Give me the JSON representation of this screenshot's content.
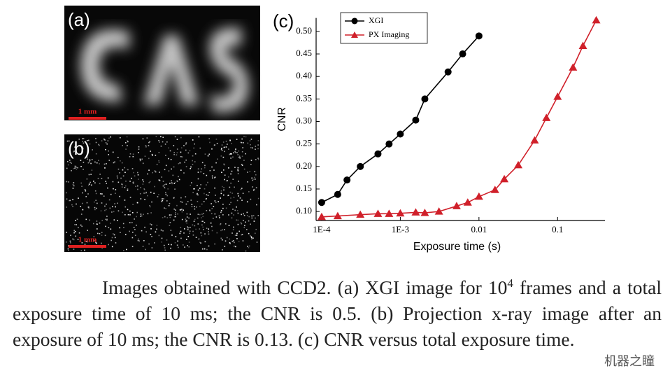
{
  "panels": {
    "a": {
      "label": "(a)",
      "scale": "1 mm"
    },
    "b": {
      "label": "(b)",
      "scale": "1 mm"
    }
  },
  "chart_data": {
    "type": "line",
    "panel_label": "(c)",
    "x_label": "Exposure time (s)",
    "y_label": "CNR",
    "log_x": true,
    "legend": "upper left",
    "xlim": [
      8.5e-05,
      0.4
    ],
    "ylim": [
      0.08,
      0.53
    ],
    "xticks": [
      {
        "value": 0.0001,
        "label": "1E-4"
      },
      {
        "value": 0.001,
        "label": "1E-3"
      },
      0.01,
      0.1
    ],
    "yticks": [
      {
        "value": 0.1,
        "label": "0.10"
      },
      0.15,
      {
        "value": 0.2,
        "label": "0.20"
      },
      0.25,
      {
        "value": 0.3,
        "label": "0.30"
      },
      0.35,
      {
        "value": 0.4,
        "label": "0.40"
      },
      0.45,
      {
        "value": 0.5,
        "label": "0.50"
      }
    ],
    "series": [
      {
        "name": "XGI",
        "color": "#000000",
        "marker": "circle",
        "x": [
          0.0001,
          0.00016,
          0.00021,
          0.00031,
          0.00052,
          0.00072,
          0.001,
          0.00157,
          0.00205,
          0.00405,
          0.0062,
          0.01
        ],
        "values": [
          0.12,
          0.138,
          0.17,
          0.2,
          0.228,
          0.25,
          0.272,
          0.303,
          0.35,
          0.41,
          0.45,
          0.49
        ]
      },
      {
        "name": "PX Imaging",
        "color": "#d0202a",
        "marker": "triangle",
        "x": [
          0.0001,
          0.00016,
          0.00031,
          0.00052,
          0.00072,
          0.001,
          0.00157,
          0.00205,
          0.0031,
          0.0052,
          0.0072,
          0.01,
          0.016,
          0.021,
          0.0316,
          0.051,
          0.072,
          0.1,
          0.157,
          0.21,
          0.31
        ],
        "values": [
          0.088,
          0.09,
          0.093,
          0.095,
          0.095,
          0.096,
          0.098,
          0.097,
          0.1,
          0.112,
          0.12,
          0.133,
          0.148,
          0.172,
          0.203,
          0.258,
          0.308,
          0.355,
          0.42,
          0.468,
          0.525
        ]
      }
    ]
  },
  "caption": {
    "part1": "Images obtained with CCD2. (a) XGI image for 10",
    "sup": "4",
    "part2": " frames and a total exposure time of 10 ms; the CNR is 0.5. (b) Projection x-ray image after an exposure of 10 ms; the CNR is 0.13. (c) CNR versus total exposure time."
  },
  "watermark": "机器之瞳"
}
